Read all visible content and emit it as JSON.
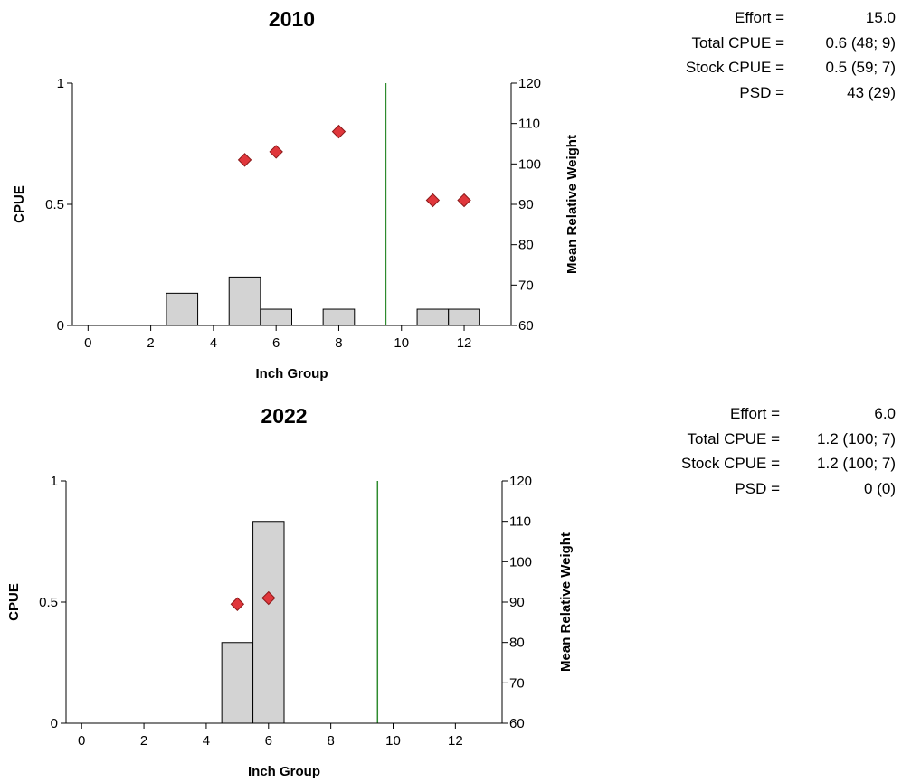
{
  "colors": {
    "bar_fill": "#d3d3d3",
    "bar_stroke": "#000000",
    "marker_fill": "#e0373c",
    "marker_stroke": "#8b1a1a",
    "reference_line": "#2e8b2e"
  },
  "panels": [
    {
      "stats": [
        {
          "label": "Effort =",
          "value": "15.0"
        },
        {
          "label": "Total CPUE =",
          "value": "0.6 (48; 9)"
        },
        {
          "label": "Stock CPUE =",
          "value": "0.5 (59; 7)"
        },
        {
          "label": "PSD =",
          "value": "43 (29)"
        }
      ]
    },
    {
      "stats": [
        {
          "label": "Effort =",
          "value": "6.0"
        },
        {
          "label": "Total CPUE =",
          "value": "1.2 (100; 7)"
        },
        {
          "label": "Stock CPUE =",
          "value": "1.2 (100; 7)"
        },
        {
          "label": "PSD =",
          "value": "0 (0)"
        }
      ]
    }
  ],
  "chart_data": [
    {
      "type": "bar",
      "title": "2010",
      "xlabel": "Inch Group",
      "ylabel": "CPUE",
      "y2label": "Mean Relative Weight",
      "xlim": [
        -0.5,
        13.5
      ],
      "xticks": [
        0,
        2,
        4,
        6,
        8,
        10,
        12
      ],
      "ylim": [
        0,
        1
      ],
      "yticks": [
        0,
        0.5,
        1
      ],
      "ytick_labels": [
        "0",
        "0.5",
        "1"
      ],
      "y2lim": [
        60,
        120
      ],
      "y2ticks": [
        60,
        70,
        80,
        90,
        100,
        110,
        120
      ],
      "grid": false,
      "reference_line_x": 9.5,
      "series": [
        {
          "kind": "bar",
          "x": [
            3,
            5,
            6,
            8,
            11,
            12
          ],
          "values": [
            0.133,
            0.2,
            0.067,
            0.067,
            0.067,
            0.067
          ]
        },
        {
          "kind": "scatter",
          "axis": "right",
          "marker": "diamond",
          "x": [
            5,
            6,
            8,
            11,
            12
          ],
          "values": [
            101,
            103,
            108,
            91,
            91
          ]
        }
      ]
    },
    {
      "type": "bar",
      "title": "2022",
      "xlabel": "Inch Group",
      "ylabel": "CPUE",
      "y2label": "Mean Relative Weight",
      "xlim": [
        -0.5,
        13.5
      ],
      "xticks": [
        0,
        2,
        4,
        6,
        8,
        10,
        12
      ],
      "ylim": [
        0,
        1
      ],
      "yticks": [
        0,
        0.5,
        1
      ],
      "ytick_labels": [
        "0",
        "0.5",
        "1"
      ],
      "y2lim": [
        60,
        120
      ],
      "y2ticks": [
        60,
        70,
        80,
        90,
        100,
        110,
        120
      ],
      "grid": false,
      "reference_line_x": 9.5,
      "series": [
        {
          "kind": "bar",
          "x": [
            5,
            6
          ],
          "values": [
            0.333,
            0.833
          ]
        },
        {
          "kind": "scatter",
          "axis": "right",
          "marker": "diamond",
          "x": [
            5,
            6
          ],
          "values": [
            89.5,
            91
          ]
        }
      ]
    }
  ]
}
